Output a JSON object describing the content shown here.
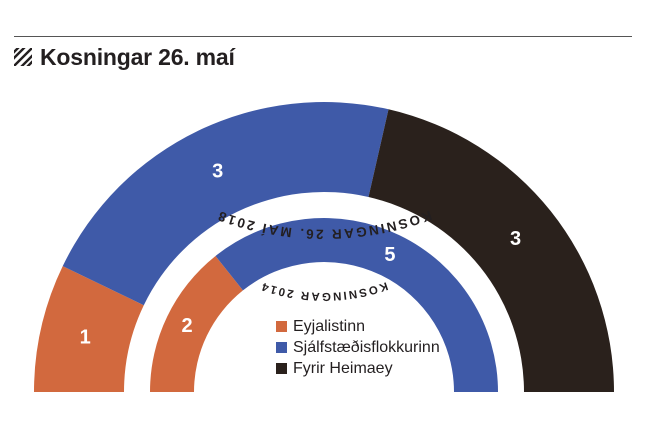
{
  "header": {
    "title": "Kosningar 26. maí",
    "icon": "hatch-icon"
  },
  "colors": {
    "Eyjalistinn": "#d2693e",
    "Sjálfstæðisflokkurinn": "#3f5aa8",
    "Fyrir Heimaey": "#2a211c",
    "text": "#231f20"
  },
  "chart_data": [
    {
      "type": "pie",
      "title": "KOSNINGAR 26. MAÍ 2018",
      "categories": [
        "Eyjalistinn",
        "Sjálfstæðisflokkurinn",
        "Fyrir Heimaey"
      ],
      "values": [
        1,
        3,
        3
      ],
      "data_labels": [
        "1",
        "3",
        "3"
      ]
    },
    {
      "type": "pie",
      "title": "KOSNINGAR 2014",
      "categories": [
        "Eyjalistinn",
        "Sjálfstæðisflokkurinn"
      ],
      "values": [
        2,
        5
      ],
      "data_labels": [
        "2",
        "5"
      ]
    }
  ],
  "legend": {
    "items": [
      {
        "label": "Eyjalistinn",
        "color": "#d2693e"
      },
      {
        "label": "Sjálfstæðisflokkurinn",
        "color": "#3f5aa8"
      },
      {
        "label": "Fyrir Heimaey",
        "color": "#2a211c"
      }
    ]
  }
}
